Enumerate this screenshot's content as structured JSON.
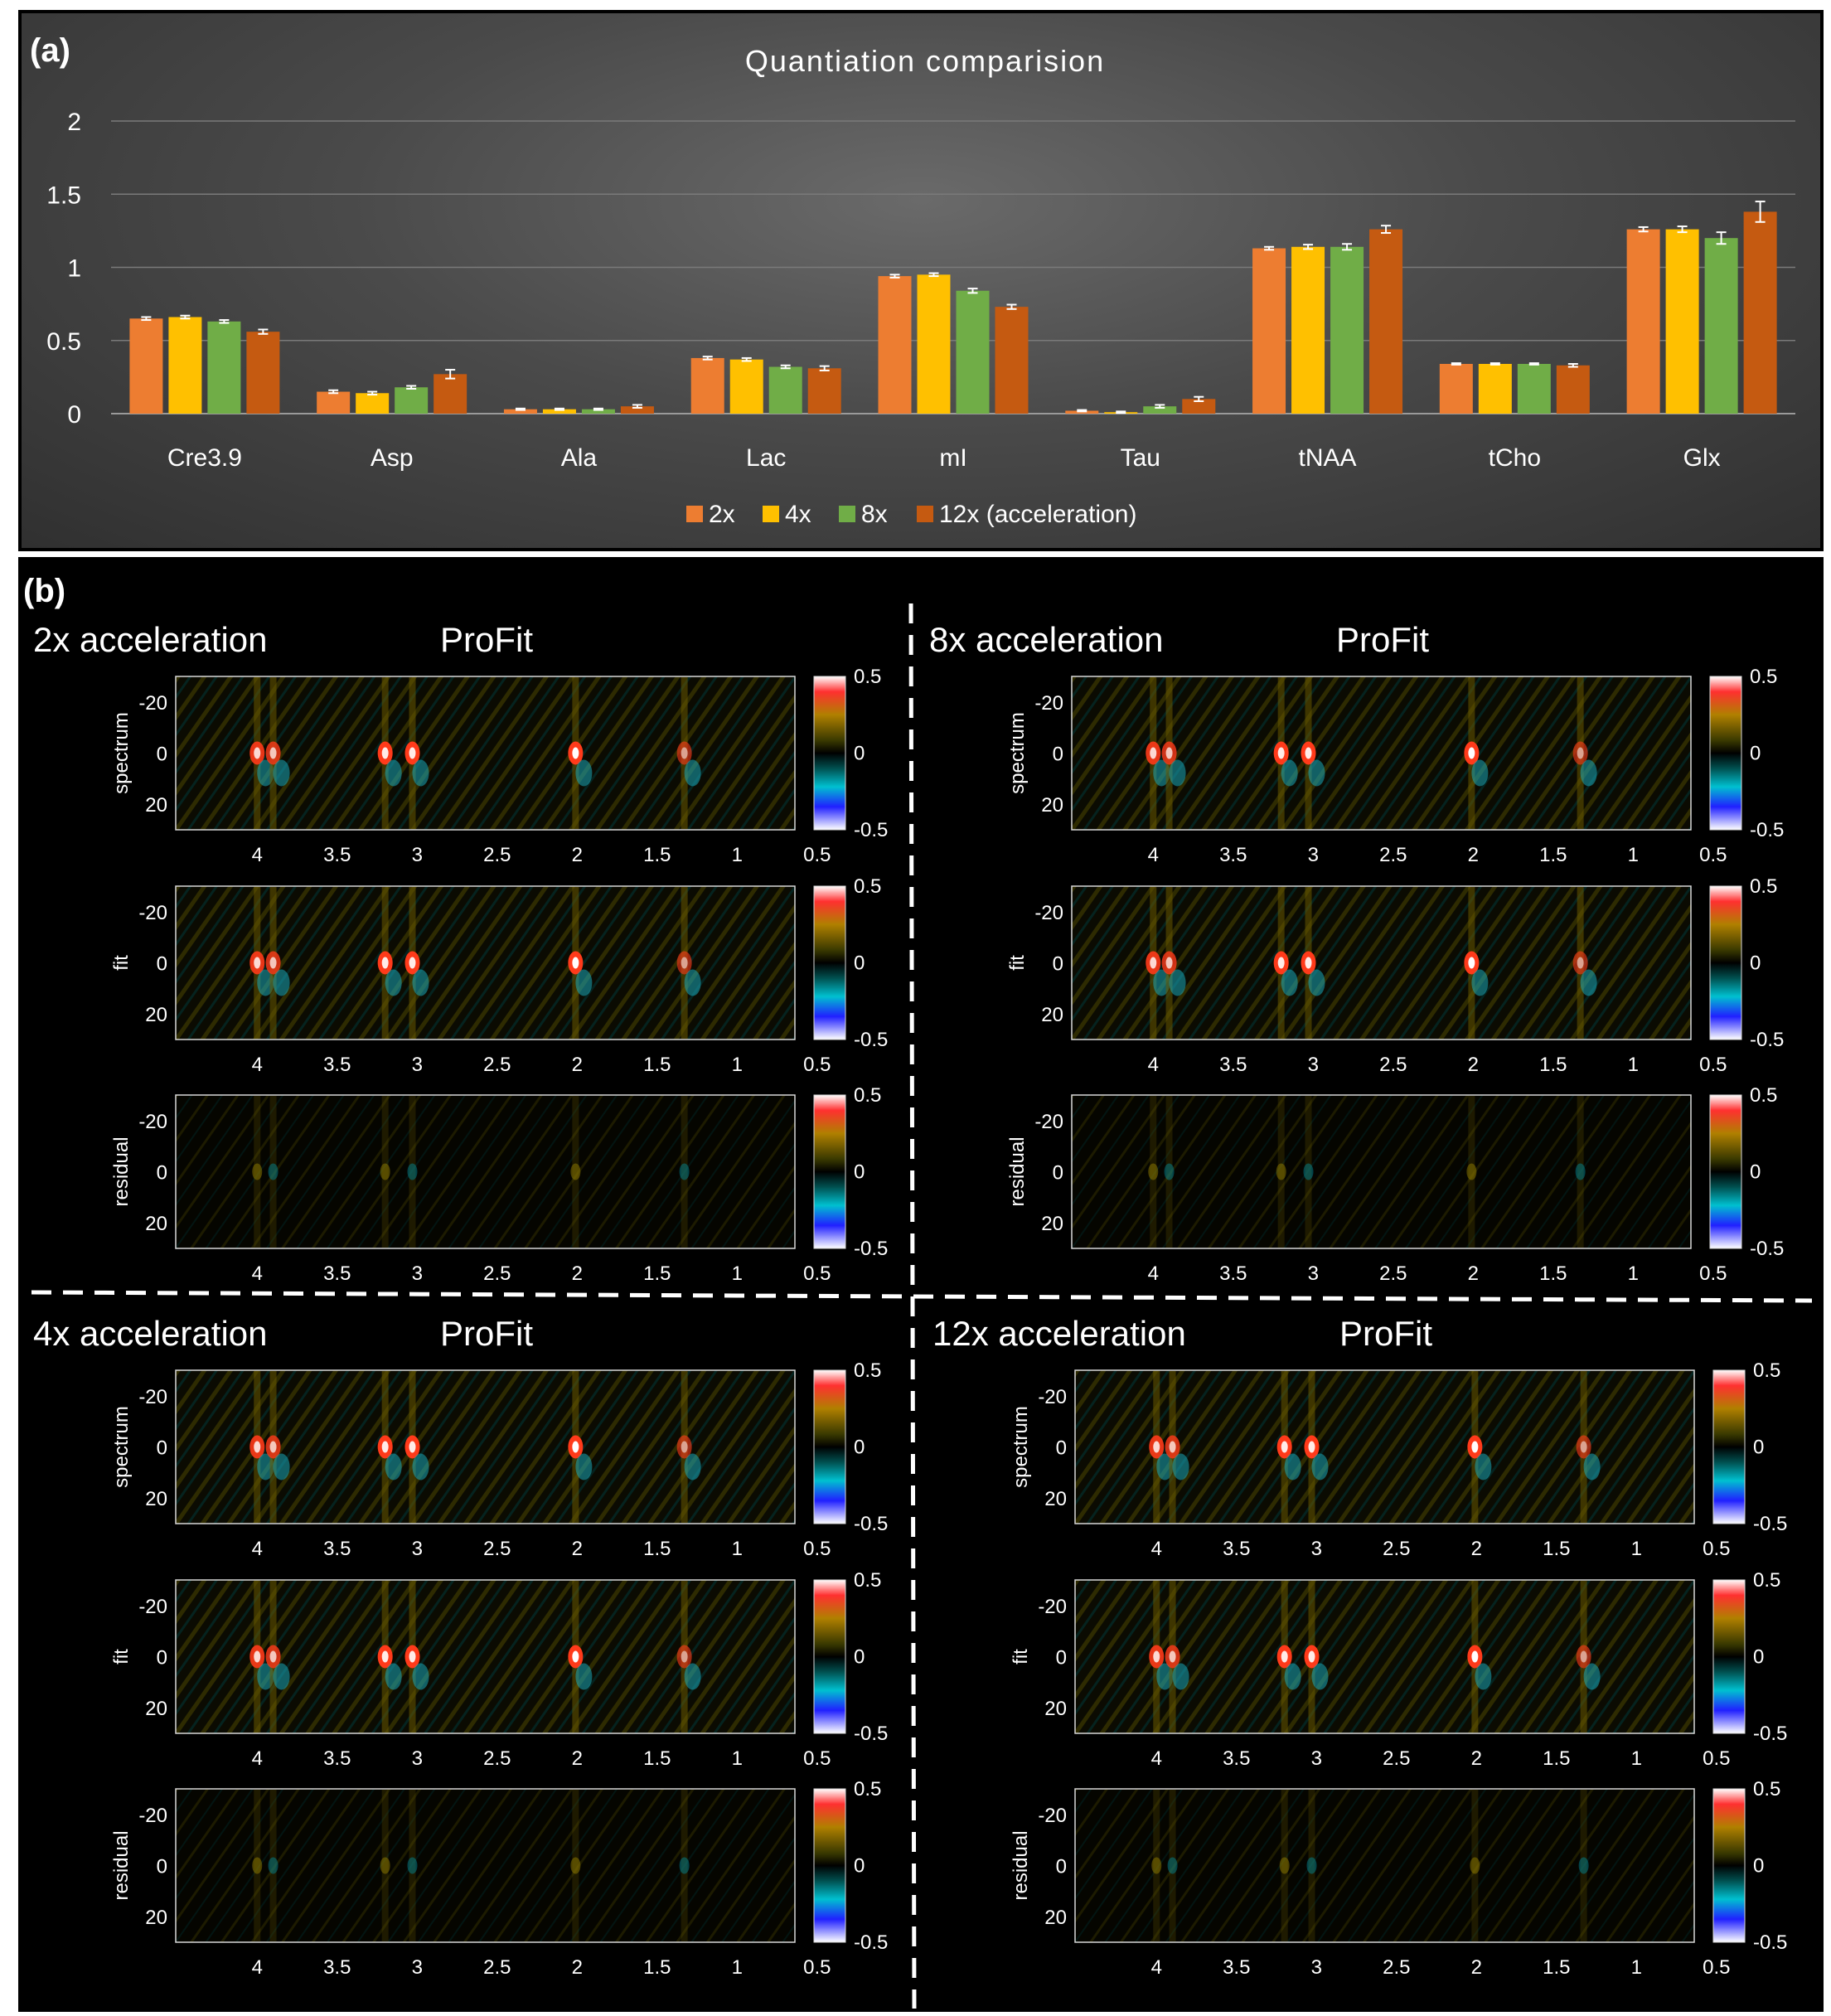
{
  "chart_data": [
    {
      "type": "bar",
      "panel_label": "(a)",
      "title": "Quantiation comparision",
      "categories": [
        "Cre3.9",
        "Asp",
        "Ala",
        "Lac",
        "mI",
        "Tau",
        "tNAA",
        "tCho",
        "Glx"
      ],
      "series": [
        {
          "name": "2x",
          "color": "#ed7d31",
          "values": [
            0.65,
            0.15,
            0.03,
            0.38,
            0.94,
            0.02,
            1.13,
            0.34,
            1.26
          ],
          "errors": [
            0.01,
            0.01,
            0.005,
            0.01,
            0.01,
            0.005,
            0.01,
            0.005,
            0.015
          ]
        },
        {
          "name": "4x",
          "color": "#ffc000",
          "values": [
            0.66,
            0.14,
            0.03,
            0.37,
            0.95,
            0.01,
            1.14,
            0.34,
            1.26
          ],
          "errors": [
            0.01,
            0.01,
            0.005,
            0.01,
            0.01,
            0.005,
            0.015,
            0.005,
            0.02
          ]
        },
        {
          "name": "8x",
          "color": "#70ad47",
          "values": [
            0.63,
            0.18,
            0.03,
            0.32,
            0.84,
            0.05,
            1.14,
            0.34,
            1.2
          ],
          "errors": [
            0.01,
            0.01,
            0.005,
            0.01,
            0.015,
            0.01,
            0.02,
            0.005,
            0.04
          ]
        },
        {
          "name": "12x (acceleration)",
          "color": "#c55a11",
          "values": [
            0.56,
            0.27,
            0.05,
            0.31,
            0.73,
            0.1,
            1.26,
            0.33,
            1.38
          ],
          "errors": [
            0.015,
            0.03,
            0.01,
            0.015,
            0.015,
            0.015,
            0.025,
            0.01,
            0.07
          ]
        }
      ],
      "yticks": [
        "0",
        "0.5",
        "1",
        "1.5",
        "2"
      ],
      "ylim": [
        0,
        2
      ],
      "grid": true,
      "legend": "bottom"
    },
    {
      "type": "heatmap",
      "panel_label": "(b)",
      "method": "ProFit",
      "quadrants": [
        {
          "title": "2x acceleration",
          "method": "ProFit"
        },
        {
          "title": "8x acceleration",
          "method": "ProFit"
        },
        {
          "title": "4x acceleration",
          "method": "ProFit"
        },
        {
          "title": "12x acceleration",
          "method": "ProFit"
        }
      ],
      "rows": [
        "spectrum",
        "fit",
        "residual"
      ],
      "xticks": [
        "4",
        "3.5",
        "3",
        "2.5",
        "2",
        "1.5",
        "1",
        "0.5"
      ],
      "yticks": [
        "-20",
        "0",
        "20"
      ],
      "colorbar_ticks": [
        "0.5",
        "0",
        "-0.5"
      ],
      "clim": [
        -0.5,
        0.5
      ]
    }
  ]
}
